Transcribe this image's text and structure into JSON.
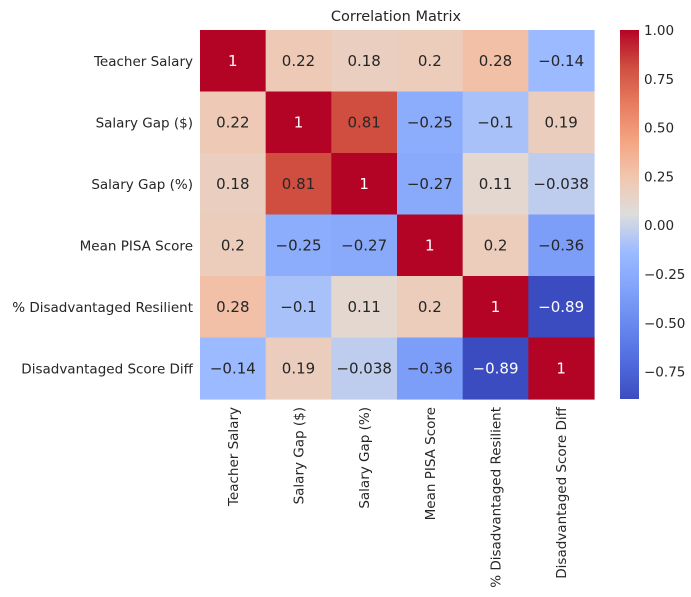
{
  "chart_data": {
    "type": "heatmap",
    "title": "Correlation Matrix",
    "xlabel": "",
    "ylabel": "",
    "variables": [
      "Teacher Salary",
      "Salary Gap ($)",
      "Salary Gap (%)",
      "Mean PISA Score",
      "% Disadvantaged Resilient",
      "Disadvantaged Score Diff"
    ],
    "matrix": [
      [
        1,
        0.22,
        0.18,
        0.2,
        0.28,
        -0.14
      ],
      [
        0.22,
        1,
        0.81,
        -0.25,
        -0.1,
        0.19
      ],
      [
        0.18,
        0.81,
        1,
        -0.27,
        0.11,
        -0.038
      ],
      [
        0.2,
        -0.25,
        -0.27,
        1,
        0.2,
        -0.36
      ],
      [
        0.28,
        -0.1,
        0.11,
        0.2,
        1,
        -0.89
      ],
      [
        -0.14,
        0.19,
        -0.038,
        -0.36,
        -0.89,
        1
      ]
    ],
    "colormap": "coolwarm",
    "colorbar": {
      "vmin": -0.89,
      "vmax": 1,
      "ticks": [
        1,
        0.75,
        0.5,
        0.25,
        0,
        -0.25,
        -0.5,
        -0.75
      ],
      "tick_labels": [
        "1.00",
        "0.75",
        "0.50",
        "0.25",
        "0.00",
        "−0.25",
        "−0.50",
        "−0.75"
      ]
    }
  }
}
